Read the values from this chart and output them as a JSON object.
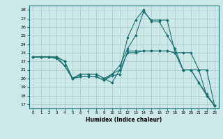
{
  "title": "",
  "xlabel": "Humidex (Indice chaleur)",
  "ylabel": "",
  "bg_color": "#cce8e8",
  "line_color": "#1a7070",
  "grid_color": "#aacccc",
  "xlim": [
    -0.5,
    23.5
  ],
  "ylim": [
    16.5,
    28.5
  ],
  "xticks": [
    0,
    1,
    2,
    3,
    4,
    5,
    6,
    7,
    8,
    9,
    10,
    11,
    12,
    13,
    14,
    15,
    16,
    17,
    18,
    19,
    20,
    21,
    22,
    23
  ],
  "yticks": [
    17,
    18,
    19,
    20,
    21,
    22,
    23,
    24,
    25,
    26,
    27,
    28
  ],
  "series": [
    {
      "x": [
        0,
        1,
        2,
        3,
        4,
        5,
        6,
        7,
        8,
        9,
        10,
        11,
        12,
        13,
        14,
        15,
        16,
        17,
        18,
        19,
        20,
        21,
        22,
        23
      ],
      "y": [
        22.5,
        22.5,
        22.5,
        22.5,
        22.0,
        20.0,
        20.5,
        20.5,
        20.5,
        20.0,
        19.5,
        21.0,
        23.0,
        23.0,
        23.2,
        23.2,
        23.2,
        23.2,
        23.0,
        23.0,
        23.0,
        21.0,
        18.0,
        16.8
      ]
    },
    {
      "x": [
        0,
        1,
        2,
        3,
        4,
        5,
        6,
        7,
        8,
        9,
        10,
        11,
        12,
        13,
        14,
        15,
        16,
        17,
        18,
        19,
        20,
        21,
        22,
        23
      ],
      "y": [
        22.5,
        22.5,
        22.5,
        22.5,
        22.0,
        20.0,
        20.2,
        20.2,
        20.2,
        19.8,
        20.5,
        21.0,
        24.8,
        26.8,
        28.0,
        26.6,
        26.6,
        25.0,
        23.5,
        21.0,
        21.0,
        19.5,
        18.0,
        16.8
      ]
    },
    {
      "x": [
        0,
        1,
        2,
        3,
        4,
        5,
        6,
        7,
        8,
        9,
        10,
        11,
        12,
        13,
        14,
        15,
        16,
        17,
        18,
        19,
        20,
        21,
        22,
        23
      ],
      "y": [
        22.5,
        22.5,
        22.5,
        22.5,
        21.5,
        20.0,
        20.2,
        20.2,
        20.2,
        19.8,
        20.3,
        20.5,
        23.2,
        23.2,
        23.2,
        23.2,
        23.2,
        23.2,
        23.0,
        21.0,
        21.0,
        21.0,
        21.0,
        16.8
      ]
    },
    {
      "x": [
        0,
        1,
        2,
        3,
        4,
        5,
        6,
        7,
        8,
        9,
        10,
        11,
        12,
        13,
        14,
        15,
        16,
        17,
        18,
        19,
        20,
        21,
        22,
        23
      ],
      "y": [
        22.5,
        22.5,
        22.5,
        22.3,
        21.5,
        20.0,
        20.5,
        20.5,
        20.5,
        20.0,
        20.5,
        21.5,
        23.5,
        25.0,
        27.8,
        26.8,
        26.8,
        26.8,
        23.0,
        21.0,
        21.0,
        19.5,
        18.2,
        16.8
      ]
    }
  ]
}
